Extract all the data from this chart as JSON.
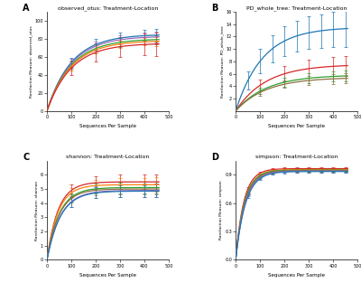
{
  "panels": [
    {
      "label": "A",
      "title": "observed_otus: Treatment-Location",
      "ylabel": "Rarefaction Measure: observed_otus",
      "ylim": [
        0,
        110
      ],
      "yticks": [
        0,
        20,
        40,
        60,
        80,
        100
      ],
      "curves": [
        {
          "color": "#1f77b4",
          "a": 85,
          "b": 0.01,
          "err_x": [
            100,
            200,
            300,
            400,
            450
          ],
          "err_s": [
            5,
            6,
            6,
            6,
            7
          ]
        },
        {
          "color": "#9467bd",
          "a": 83,
          "b": 0.01,
          "err_x": [
            100,
            200,
            300,
            400,
            450
          ],
          "err_s": [
            5,
            5,
            5,
            5,
            6
          ]
        },
        {
          "color": "#2ca02c",
          "a": 80,
          "b": 0.01,
          "err_x": [
            100,
            200,
            300,
            400,
            450
          ],
          "err_s": [
            4,
            5,
            5,
            5,
            5
          ]
        },
        {
          "color": "#ff7f0e",
          "a": 78,
          "b": 0.01,
          "err_x": [
            100,
            200,
            300,
            400,
            450
          ],
          "err_s": [
            4,
            4,
            4,
            4,
            5
          ]
        },
        {
          "color": "#d62728",
          "a": 75,
          "b": 0.01,
          "err_x": [
            100,
            200,
            300,
            400,
            450
          ],
          "err_s": [
            8,
            10,
            11,
            12,
            13
          ]
        }
      ]
    },
    {
      "label": "B",
      "title": "PD_whole_tree: Treatment-Location",
      "ylabel": "Rarefaction Measure: PD_whole_tree",
      "ylim": [
        0,
        16
      ],
      "yticks": [
        2,
        4,
        6,
        8,
        10,
        12,
        14,
        16
      ],
      "curves": [
        {
          "color": "#1f77b4",
          "a": 13.5,
          "b": 0.009,
          "err_x": [
            50,
            100,
            150,
            200,
            250,
            300,
            350,
            400,
            450
          ],
          "err_s": [
            1.5,
            2.0,
            2.2,
            2.4,
            2.5,
            2.6,
            2.7,
            2.8,
            3.0
          ]
        },
        {
          "color": "#d62728",
          "a": 7.5,
          "b": 0.008,
          "err_x": [
            100,
            200,
            300,
            400,
            450
          ],
          "err_s": [
            1.0,
            1.2,
            1.4,
            1.5,
            1.6
          ]
        },
        {
          "color": "#2ca02c",
          "a": 5.8,
          "b": 0.008,
          "err_x": [
            100,
            200,
            300,
            400,
            450
          ],
          "err_s": [
            0.5,
            0.7,
            0.8,
            0.8,
            0.9
          ]
        },
        {
          "color": "#8c7040",
          "a": 5.4,
          "b": 0.008,
          "err_x": [
            100,
            200,
            300,
            400,
            450
          ],
          "err_s": [
            0.5,
            0.6,
            0.7,
            0.8,
            0.8
          ]
        }
      ]
    },
    {
      "label": "C",
      "title": "shannon: Treatment-Location",
      "ylabel": "Rarefaction Measure: shannon",
      "ylim": [
        0,
        7
      ],
      "yticks": [
        0,
        1,
        2,
        3,
        4,
        5,
        6
      ],
      "curves": [
        {
          "color": "#d62728",
          "a": 5.5,
          "b": 0.022,
          "err_x": [
            100,
            200,
            300,
            400,
            450
          ],
          "err_s": [
            0.4,
            0.45,
            0.5,
            0.5,
            0.55
          ]
        },
        {
          "color": "#ff7f0e",
          "a": 5.3,
          "b": 0.022,
          "err_x": [
            100,
            200,
            300,
            400,
            450
          ],
          "err_s": [
            0.35,
            0.4,
            0.45,
            0.45,
            0.5
          ]
        },
        {
          "color": "#2ca02c",
          "a": 5.1,
          "b": 0.02,
          "err_x": [
            100,
            200,
            300,
            400,
            450
          ],
          "err_s": [
            0.3,
            0.35,
            0.38,
            0.4,
            0.42
          ]
        },
        {
          "color": "#8c7040",
          "a": 5.0,
          "b": 0.02,
          "err_x": [
            100,
            200,
            300,
            400,
            450
          ],
          "err_s": [
            0.3,
            0.33,
            0.36,
            0.38,
            0.4
          ]
        },
        {
          "color": "#9467bd",
          "a": 4.9,
          "b": 0.018,
          "err_x": [
            100,
            200,
            300,
            400,
            450
          ],
          "err_s": [
            0.35,
            0.4,
            0.42,
            0.45,
            0.48
          ]
        },
        {
          "color": "#1f77b4",
          "a": 4.85,
          "b": 0.018,
          "err_x": [
            100,
            200,
            300,
            400,
            450
          ],
          "err_s": [
            0.35,
            0.38,
            0.4,
            0.43,
            0.45
          ]
        }
      ]
    },
    {
      "label": "D",
      "title": "simpson: Treatment-Location",
      "ylabel": "Rarefaction Measure: simpson",
      "ylim": [
        0.0,
        1.05
      ],
      "yticks": [
        0.0,
        0.3,
        0.6,
        0.9
      ],
      "curves": [
        {
          "color": "#d62728",
          "a": 0.965,
          "b": 0.03,
          "err_x": [
            50,
            100,
            150,
            200,
            250,
            300,
            350,
            400,
            450
          ],
          "err_s": [
            0.015,
            0.018,
            0.018,
            0.018,
            0.018,
            0.018,
            0.018,
            0.018,
            0.018
          ]
        },
        {
          "color": "#ff7f0e",
          "a": 0.955,
          "b": 0.028,
          "err_x": [
            50,
            100,
            150,
            200,
            250,
            300,
            350,
            400,
            450
          ],
          "err_s": [
            0.013,
            0.015,
            0.015,
            0.015,
            0.015,
            0.015,
            0.015,
            0.015,
            0.015
          ]
        },
        {
          "color": "#2ca02c",
          "a": 0.95,
          "b": 0.028,
          "err_x": [
            50,
            100,
            150,
            200,
            250,
            300,
            350,
            400,
            450
          ],
          "err_s": [
            0.012,
            0.014,
            0.014,
            0.014,
            0.014,
            0.014,
            0.014,
            0.014,
            0.014
          ]
        },
        {
          "color": "#8c7040",
          "a": 0.945,
          "b": 0.027,
          "err_x": [
            50,
            100,
            150,
            200,
            250,
            300,
            350,
            400,
            450
          ],
          "err_s": [
            0.011,
            0.013,
            0.013,
            0.013,
            0.013,
            0.013,
            0.013,
            0.013,
            0.013
          ]
        },
        {
          "color": "#9467bd",
          "a": 0.94,
          "b": 0.026,
          "err_x": [
            50,
            100,
            150,
            200,
            250,
            300,
            350,
            400,
            450
          ],
          "err_s": [
            0.012,
            0.014,
            0.014,
            0.014,
            0.014,
            0.014,
            0.014,
            0.014,
            0.014
          ]
        },
        {
          "color": "#1f77b4",
          "a": 0.935,
          "b": 0.025,
          "err_x": [
            50,
            100,
            150,
            200,
            250,
            300,
            350,
            400,
            450
          ],
          "err_s": [
            0.012,
            0.013,
            0.013,
            0.013,
            0.013,
            0.013,
            0.013,
            0.013,
            0.013
          ]
        }
      ]
    }
  ],
  "xlabel": "Sequences Per Sample",
  "background_color": "#ffffff",
  "figure_facecolor": "#ffffff"
}
